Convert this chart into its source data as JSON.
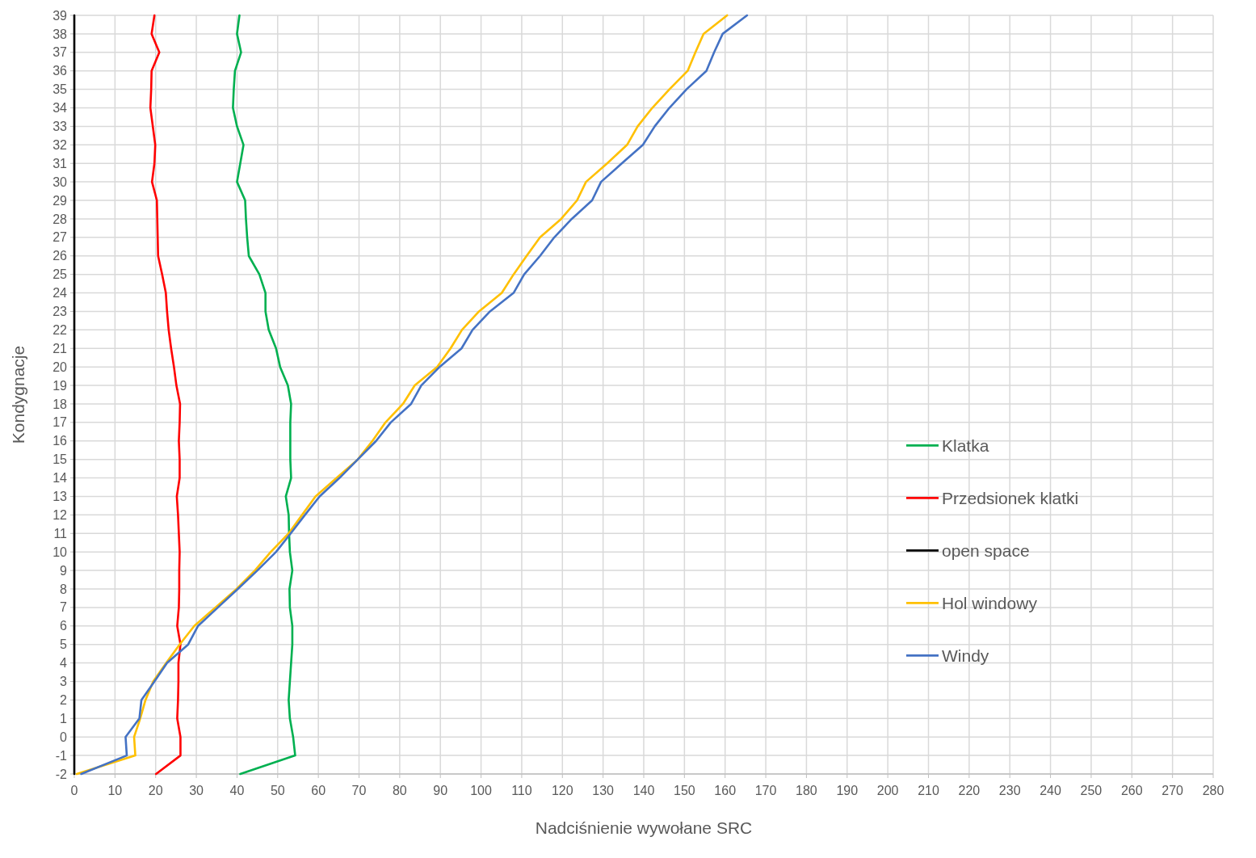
{
  "chart_data": {
    "type": "line",
    "xlabel": "Nadciśnienie wywołane SRC",
    "ylabel": "Kondygnacje",
    "xlim": [
      0,
      280
    ],
    "xticks": [
      0,
      10,
      20,
      30,
      40,
      50,
      60,
      70,
      80,
      90,
      100,
      110,
      120,
      130,
      140,
      150,
      160,
      170,
      180,
      190,
      200,
      210,
      220,
      230,
      240,
      250,
      260,
      270,
      280
    ],
    "ylim": [
      -2,
      39
    ],
    "yticks": [
      -2,
      -1,
      0,
      1,
      2,
      3,
      4,
      5,
      6,
      7,
      8,
      9,
      10,
      11,
      12,
      13,
      14,
      15,
      16,
      17,
      18,
      19,
      20,
      21,
      22,
      23,
      24,
      25,
      26,
      27,
      28,
      29,
      30,
      31,
      32,
      33,
      34,
      35,
      36,
      37,
      38,
      39
    ],
    "grid": true,
    "legend": "right",
    "marker": "none",
    "line_style": "solid",
    "series": [
      {
        "name": "Klatka",
        "color": "#00b050",
        "x": [
          40.8,
          54.3,
          53.8,
          53,
          52.7,
          53,
          53.3,
          53.6,
          53.6,
          53,
          52.9,
          53.6,
          53,
          52.8,
          52.7,
          52,
          53.3,
          53.1,
          53.1,
          53.1,
          53.3,
          52.5,
          50.6,
          49.6,
          47.8,
          47,
          47,
          45.5,
          42.9,
          42.5,
          42.2,
          42,
          40,
          40.8,
          41.6,
          40,
          39,
          39.2,
          39.5,
          41,
          40,
          40.6
        ],
        "values": [
          -2,
          -1,
          0,
          1,
          2,
          3,
          4,
          5,
          6,
          7,
          8,
          9,
          10,
          11,
          12,
          13,
          14,
          15,
          16,
          17,
          18,
          19,
          20,
          21,
          22,
          23,
          24,
          25,
          26,
          27,
          28,
          29,
          30,
          31,
          32,
          33,
          34,
          35,
          36,
          37,
          38,
          39
        ]
      },
      {
        "name": "Przedsionek klatki",
        "color": "#ff0000",
        "x": [
          20.1,
          26.1,
          26.1,
          25.3,
          25.5,
          25.6,
          25.6,
          26.1,
          25.3,
          25.7,
          25.8,
          25.8,
          25.9,
          25.7,
          25.5,
          25.2,
          25.9,
          25.9,
          25.7,
          25.9,
          26,
          25.1,
          24.5,
          23.8,
          23.2,
          22.8,
          22.5,
          21.6,
          20.6,
          20.5,
          20.4,
          20.3,
          19.1,
          19.7,
          19.9,
          19.3,
          18.7,
          18.9,
          19,
          20.9,
          19,
          19.7
        ],
        "values": [
          -2,
          -1,
          0,
          1,
          2,
          3,
          4,
          5,
          6,
          7,
          8,
          9,
          10,
          11,
          12,
          13,
          14,
          15,
          16,
          17,
          18,
          19,
          20,
          21,
          22,
          23,
          24,
          25,
          26,
          27,
          28,
          29,
          30,
          31,
          32,
          33,
          34,
          35,
          36,
          37,
          38,
          39
        ]
      },
      {
        "name": "open space",
        "color": "#000000",
        "x": [
          0,
          0,
          0,
          0,
          0,
          0,
          0,
          0,
          0,
          0,
          0,
          0,
          0,
          0,
          0,
          0,
          0,
          0,
          0,
          0,
          0,
          0,
          0,
          0,
          0,
          0,
          0,
          0,
          0,
          0,
          0,
          0,
          0,
          0,
          0,
          0,
          0,
          0,
          0,
          0,
          0,
          0
        ],
        "values": [
          -2,
          -1,
          0,
          1,
          2,
          3,
          4,
          5,
          6,
          7,
          8,
          9,
          10,
          11,
          12,
          13,
          14,
          15,
          16,
          17,
          18,
          19,
          20,
          21,
          22,
          23,
          24,
          25,
          26,
          27,
          28,
          29,
          30,
          31,
          32,
          33,
          34,
          35,
          36,
          37,
          38,
          39
        ]
      },
      {
        "name": "Hol windowy",
        "color": "#ffc000",
        "x": [
          0.6,
          15,
          14.7,
          16.2,
          17.5,
          19.4,
          22.6,
          25.9,
          29.5,
          34.7,
          39.9,
          44.4,
          48.3,
          52.7,
          56,
          59.3,
          64.5,
          69.7,
          73.3,
          76.5,
          80.8,
          83.7,
          89.2,
          92.5,
          95.3,
          99.5,
          105.1,
          108,
          111.2,
          114.5,
          119.7,
          123.6,
          125.8,
          131,
          135.9,
          138.5,
          142.1,
          146.3,
          150.8,
          152.7,
          154.7,
          160.5
        ],
        "values": [
          -2,
          -1,
          0,
          1,
          2,
          3,
          4,
          5,
          6,
          7,
          8,
          9,
          10,
          11,
          12,
          13,
          14,
          15,
          16,
          17,
          18,
          19,
          20,
          21,
          22,
          23,
          24,
          25,
          26,
          27,
          28,
          29,
          30,
          31,
          32,
          33,
          34,
          35,
          36,
          37,
          38,
          39
        ]
      },
      {
        "name": "Windy",
        "color": "#4472c4",
        "x": [
          1.7,
          12.9,
          12.6,
          16,
          16.5,
          19.7,
          22.8,
          28,
          30.4,
          35.3,
          40.2,
          45,
          49.6,
          53.2,
          56.7,
          60.3,
          65.2,
          69.7,
          74.2,
          77.8,
          82.8,
          85.3,
          89.8,
          95.2,
          97.9,
          102.2,
          108,
          110.6,
          114.5,
          118,
          122.3,
          127.3,
          129.5,
          134.6,
          139.8,
          142.7,
          146.3,
          150.5,
          155.4,
          157.3,
          159.4,
          165.4
        ],
        "values": [
          -2,
          -1,
          0,
          1,
          2,
          3,
          4,
          5,
          6,
          7,
          8,
          9,
          10,
          11,
          12,
          13,
          14,
          15,
          16,
          17,
          18,
          19,
          20,
          21,
          22,
          23,
          24,
          25,
          26,
          27,
          28,
          29,
          30,
          31,
          32,
          33,
          34,
          35,
          36,
          37,
          38,
          39
        ]
      }
    ]
  }
}
